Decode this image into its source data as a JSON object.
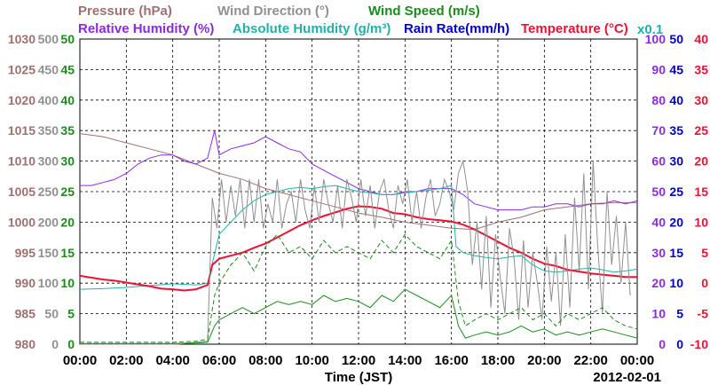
{
  "chart_data": {
    "type": "line",
    "date": "2012-02-01",
    "xlabel": "Time (JST)",
    "x_ticks": [
      "00:00",
      "02:00",
      "04:00",
      "06:00",
      "08:00",
      "10:00",
      "12:00",
      "14:00",
      "16:00",
      "18:00",
      "20:00",
      "22:00",
      "00:00"
    ],
    "xlim_hours": [
      0,
      24
    ],
    "grid": true,
    "legend_row1": [
      {
        "name": "Pressure (hPa)",
        "color": "#a07070"
      },
      {
        "name": "Wind Direction (°)",
        "color": "#909090"
      },
      {
        "name": "Wind Speed (m/s)",
        "color": "#1a8c1a"
      }
    ],
    "legend_row2": [
      {
        "name": "Relative Humidity (%)",
        "color": "#8a2be2"
      },
      {
        "name": "Absolute Humidity (g/m³)",
        "color": "#20b2aa"
      },
      {
        "name": "Rain Rate(mm/h)",
        "color": "#0000cc"
      },
      {
        "name": "Temperature (°C)",
        "color": "#ee1133"
      }
    ],
    "rain_scale_note": "x0.1",
    "axes": {
      "pressure": {
        "color": "#a07070",
        "ticks": [
          "980",
          "985",
          "990",
          "995",
          "1000",
          "1005",
          "1010",
          "1015",
          "1020",
          "1025",
          "1030"
        ],
        "range": [
          980,
          1030
        ]
      },
      "wind_direction": {
        "color": "#909090",
        "ticks": [
          "0",
          "50",
          "100",
          "150",
          "200",
          "250",
          "300",
          "350",
          "400",
          "450",
          "500"
        ],
        "range": [
          0,
          500
        ]
      },
      "wind_speed": {
        "color": "#1a8c1a",
        "ticks": [
          "0",
          "5",
          "10",
          "15",
          "20",
          "25",
          "30",
          "35",
          "40",
          "45",
          "50"
        ],
        "range": [
          0,
          50
        ]
      },
      "humidity": {
        "color": "#8a2be2",
        "ticks": [
          "0",
          "10",
          "20",
          "30",
          "40",
          "50",
          "60",
          "70",
          "80",
          "90",
          "100"
        ],
        "range": [
          0,
          100
        ]
      },
      "rain_rate": {
        "color": "#0000cc",
        "ticks": [
          "0",
          "5",
          "10",
          "15",
          "20",
          "25",
          "30",
          "35",
          "40",
          "45",
          "50"
        ],
        "range": [
          0,
          50
        ]
      },
      "temperature": {
        "color": "#ee1133",
        "ticks": [
          "-10",
          "-5",
          "0",
          "5",
          "10",
          "15",
          "20",
          "25",
          "30",
          "35",
          "40"
        ],
        "range": [
          -10,
          40
        ]
      }
    },
    "series": [
      {
        "key": "pressure",
        "axis": "pressure",
        "color": "#a07070",
        "x": [
          0,
          1,
          2,
          3,
          4,
          5,
          6,
          7,
          8,
          9,
          10,
          11,
          12,
          13,
          14,
          15,
          16,
          17,
          18,
          19,
          20,
          21,
          22,
          23,
          24
        ],
        "y": [
          1014.5,
          1014,
          1013,
          1012,
          1011,
          1009.5,
          1008,
          1007,
          1005.5,
          1004.5,
          1003.5,
          1002.5,
          1001.5,
          1000.8,
          1000,
          999.5,
          999,
          998.8,
          1000,
          1000.8,
          1002,
          1002.5,
          1003,
          1003.2,
          1003.2
        ]
      },
      {
        "key": "relative_humidity",
        "axis": "humidity",
        "color": "#8a2be2",
        "x": [
          0,
          0.5,
          1,
          1.5,
          2,
          2.5,
          3,
          3.5,
          4,
          4.5,
          5,
          5.5,
          5.8,
          6,
          6.5,
          7,
          7.5,
          8,
          8.5,
          9,
          9.5,
          10,
          10.5,
          11,
          11.5,
          12,
          12.5,
          13,
          13.5,
          14,
          14.5,
          15,
          15.5,
          16,
          16.5,
          17,
          17.5,
          18,
          18.5,
          19,
          19.5,
          20,
          20.5,
          21,
          21.5,
          22,
          22.5,
          23,
          23.5,
          24
        ],
        "y": [
          52,
          52,
          53,
          54,
          56,
          59,
          61,
          62,
          62,
          60,
          59,
          61,
          70,
          62,
          64,
          65,
          66,
          68,
          66,
          64,
          63,
          59,
          57,
          55,
          53,
          51,
          50,
          49,
          49,
          50,
          50,
          51,
          51,
          51,
          49,
          46,
          45,
          44,
          44,
          44,
          45,
          45,
          46,
          46,
          45,
          46,
          46,
          47,
          46,
          47
        ]
      },
      {
        "key": "absolute_humidity",
        "axis": "wind_speed",
        "color": "#20b2aa",
        "x": [
          0,
          1,
          2,
          3,
          4,
          5,
          5.5,
          6,
          6.5,
          7,
          7.5,
          8,
          8.5,
          9,
          9.5,
          10,
          10.5,
          11,
          11.5,
          12,
          12.5,
          13,
          13.5,
          14,
          14.5,
          15,
          15.5,
          16,
          16.2,
          16.5,
          17,
          17.5,
          18,
          18.5,
          19,
          19.5,
          20,
          20.5,
          21,
          21.5,
          22,
          22.5,
          23,
          23.5,
          24
        ],
        "y": [
          9,
          9.1,
          9.3,
          9.6,
          9.9,
          9.7,
          10,
          18,
          20,
          22,
          23.5,
          24.5,
          25,
          25.5,
          25.7,
          25.5,
          25.8,
          26,
          25.5,
          25,
          24.8,
          24.5,
          24.5,
          24.8,
          25,
          25.2,
          25.5,
          26,
          16,
          15,
          14.5,
          14.2,
          14,
          14.3,
          14.5,
          13,
          12,
          11.8,
          12,
          12.3,
          12.5,
          12.2,
          11.8,
          12,
          12.3
        ]
      },
      {
        "key": "temperature",
        "axis": "temperature",
        "color": "#ee1133",
        "x": [
          0,
          0.5,
          1,
          1.5,
          2,
          2.5,
          3,
          3.5,
          4,
          4.5,
          5,
          5.5,
          5.7,
          6,
          6.5,
          7,
          7.5,
          8,
          8.5,
          9,
          9.5,
          10,
          10.5,
          11,
          11.5,
          12,
          12.5,
          13,
          13.5,
          14,
          14.5,
          15,
          15.5,
          16,
          16.5,
          17,
          17.5,
          18,
          18.5,
          19,
          19.5,
          20,
          20.5,
          21,
          21.5,
          22,
          22.5,
          23,
          23.5,
          24
        ],
        "y": [
          1.2,
          0.9,
          0.6,
          0.4,
          0.1,
          -0.2,
          -0.5,
          -0.9,
          -1.0,
          -1.2,
          -1.0,
          -0.3,
          3,
          4,
          4.5,
          5,
          5.8,
          6.5,
          7.5,
          8.5,
          9.5,
          10.3,
          11,
          11.6,
          12.2,
          12.6,
          12.5,
          12.2,
          11.5,
          11.3,
          10.8,
          10.5,
          10.3,
          10.1,
          9.6,
          8.8,
          7.8,
          6.8,
          5.8,
          5,
          4,
          3.2,
          2.8,
          2.2,
          1.9,
          1.6,
          1.4,
          1.2,
          1.0,
          1.0
        ]
      },
      {
        "key": "wind_direction",
        "axis": "wind_direction",
        "color": "#909090",
        "x": [
          0,
          3.8,
          3.9,
          4.2,
          5.5,
          5.7,
          5.9,
          6.1,
          6.3,
          6.5,
          6.7,
          6.9,
          7.1,
          7.3,
          7.5,
          7.7,
          7.9,
          8.1,
          8.3,
          8.5,
          8.7,
          8.9,
          9.1,
          9.3,
          9.5,
          9.7,
          9.9,
          10.1,
          10.3,
          10.5,
          10.7,
          10.9,
          11.1,
          11.3,
          11.5,
          11.7,
          11.9,
          12.1,
          12.3,
          12.5,
          12.7,
          12.9,
          13.1,
          13.3,
          13.5,
          13.7,
          13.9,
          14.1,
          14.3,
          14.5,
          14.7,
          14.9,
          15.1,
          15.3,
          15.5,
          15.7,
          15.9,
          16.1,
          16.3,
          16.5,
          16.7,
          16.9,
          17.1,
          17.3,
          17.5,
          17.7,
          17.9,
          18.1,
          18.3,
          18.5,
          18.7,
          18.9,
          19.1,
          19.3,
          19.5,
          19.7,
          19.9,
          20.1,
          20.3,
          20.5,
          20.7,
          20.9,
          21.1,
          21.3,
          21.5,
          21.7,
          21.9,
          22.1,
          22.3,
          22.5,
          22.7,
          22.9,
          23.1,
          23.3,
          23.5,
          23.7
        ],
        "y": [
          0,
          0,
          0,
          0,
          5,
          240,
          190,
          270,
          200,
          260,
          210,
          270,
          190,
          270,
          200,
          270,
          190,
          230,
          200,
          270,
          190,
          230,
          250,
          200,
          270,
          220,
          190,
          260,
          200,
          270,
          230,
          200,
          260,
          190,
          270,
          240,
          200,
          270,
          210,
          260,
          190,
          250,
          270,
          220,
          190,
          260,
          230,
          270,
          200,
          250,
          190,
          240,
          270,
          210,
          230,
          270,
          250,
          220,
          280,
          300,
          250,
          130,
          200,
          90,
          210,
          60,
          180,
          110,
          50,
          190,
          140,
          40,
          170,
          60,
          150,
          100,
          40,
          160,
          70,
          150,
          30,
          180,
          60,
          240,
          120,
          280,
          90,
          300,
          160,
          50,
          250,
          130,
          210,
          100,
          200,
          80
        ]
      },
      {
        "key": "wind_speed",
        "axis": "wind_speed",
        "color": "#1a8c1a",
        "x": [
          0,
          1,
          2,
          3,
          4,
          5,
          5.5,
          5.8,
          6,
          6.5,
          7,
          7.5,
          8,
          8.5,
          9,
          9.5,
          10,
          10.5,
          11,
          11.5,
          12,
          12.5,
          13,
          13.5,
          14,
          14.5,
          15,
          15.5,
          16,
          16.3,
          16.6,
          17,
          17.5,
          18,
          18.5,
          19,
          19.5,
          20,
          20.5,
          21,
          21.5,
          22,
          22.5,
          23,
          23.5,
          24
        ],
        "y": [
          0.1,
          0.1,
          0.1,
          0.1,
          0.1,
          0.2,
          0.3,
          3,
          4,
          5,
          6,
          5,
          6,
          7,
          6.5,
          7,
          6.5,
          8,
          7,
          7.5,
          7,
          6,
          8,
          7,
          9,
          8,
          7,
          6,
          8,
          3,
          1,
          1.5,
          2,
          1.5,
          2,
          3,
          2,
          2.5,
          1.5,
          2,
          1.5,
          2,
          2.5,
          2,
          1.5,
          1
        ]
      },
      {
        "key": "wind_gust",
        "axis": "wind_speed",
        "color": "#1a8c1a",
        "dashed": true,
        "x": [
          0,
          1,
          2,
          3,
          4,
          5,
          5.5,
          5.8,
          6,
          6.5,
          7,
          7.5,
          8,
          8.5,
          9,
          9.5,
          10,
          10.5,
          11,
          11.5,
          12,
          12.5,
          13,
          13.5,
          14,
          14.5,
          15,
          15.5,
          16,
          16.3,
          16.6,
          17,
          17.5,
          18,
          18.5,
          19,
          19.5,
          20,
          20.5,
          21,
          21.5,
          22,
          22.5,
          23,
          23.5,
          24
        ],
        "y": [
          0.3,
          0.3,
          0.3,
          0.3,
          0.3,
          0.5,
          0.8,
          8,
          10,
          13,
          15,
          12,
          16,
          18,
          15,
          16,
          14,
          17,
          15,
          16,
          15,
          14,
          17,
          15,
          18,
          16,
          15,
          14,
          17,
          7,
          3,
          4,
          5,
          4,
          5,
          6,
          4,
          5,
          3,
          5,
          4,
          5,
          6,
          4,
          3,
          2.5
        ]
      }
    ]
  }
}
